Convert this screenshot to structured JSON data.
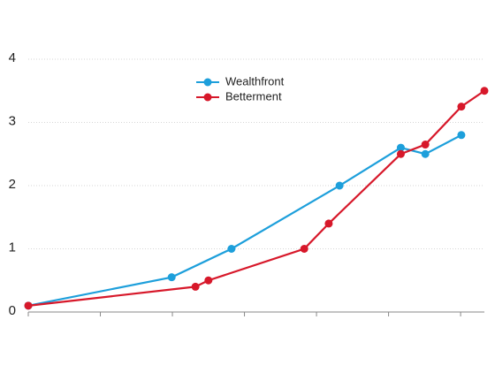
{
  "chart_data": {
    "type": "line",
    "series": [
      {
        "name": "Wealthfront",
        "color": "#1d9fdb",
        "x": [
          0,
          1.99,
          2.82,
          4.32,
          5.17,
          5.51,
          6.01
        ],
        "values": [
          0.1,
          0.55,
          1.0,
          2.0,
          2.6,
          2.5,
          2.8
        ]
      },
      {
        "name": "Betterment",
        "color": "#d7182a",
        "x": [
          0,
          2.32,
          2.5,
          3.83,
          4.17,
          5.17,
          5.51,
          6.01,
          6.33
        ],
        "values": [
          0.1,
          0.4,
          0.5,
          1.0,
          1.4,
          2.5,
          2.65,
          3.25,
          3.5
        ]
      }
    ],
    "xlim": [
      0,
      6.33
    ],
    "xticks": [
      0,
      1,
      2,
      3,
      4,
      5,
      6
    ],
    "ylim": [
      0,
      4
    ],
    "yticks": [
      0,
      1,
      2,
      3,
      4
    ],
    "grid": true
  }
}
